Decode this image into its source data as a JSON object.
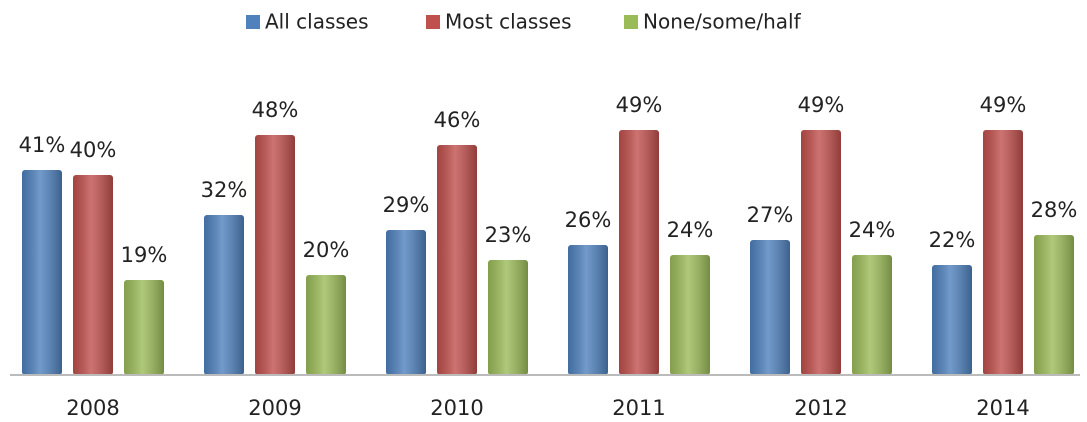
{
  "chart_data": {
    "type": "bar",
    "categories": [
      "2008",
      "2009",
      "2010",
      "2011",
      "2012",
      "2014"
    ],
    "series": [
      {
        "name": "All classes",
        "color": "#4f81bd",
        "values": [
          41,
          32,
          29,
          26,
          27,
          22
        ],
        "value_labels": [
          "41%",
          "32%",
          "29%",
          "26%",
          "27%",
          "22%"
        ]
      },
      {
        "name": "Most classes",
        "color": "#c0504d",
        "values": [
          40,
          48,
          46,
          49,
          49,
          49
        ],
        "value_labels": [
          "40%",
          "48%",
          "46%",
          "49%",
          "49%",
          "49%"
        ]
      },
      {
        "name": "None/some/half",
        "color": "#9bbb59",
        "values": [
          19,
          20,
          23,
          24,
          24,
          28
        ],
        "value_labels": [
          "19%",
          "20%",
          "23%",
          "24%",
          "24%",
          "28%"
        ]
      }
    ],
    "legend": "top"
  }
}
